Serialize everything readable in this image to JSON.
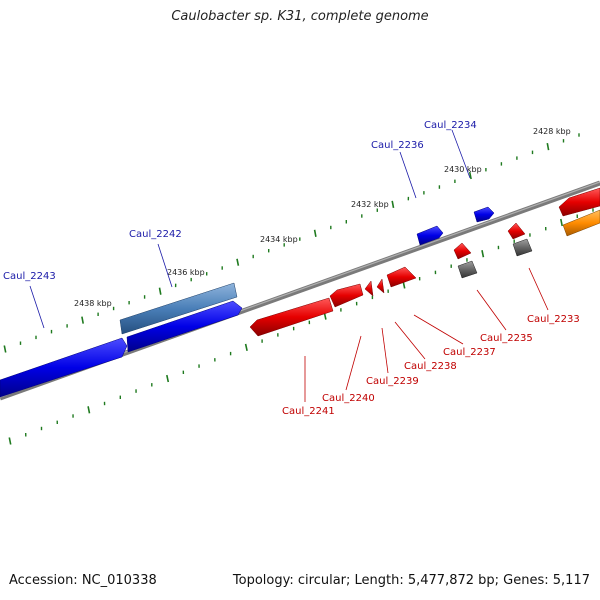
{
  "title": "Caulobacter sp. K31, complete genome",
  "footer": {
    "accession": "Accession: NC_010338",
    "stats": "Topology: circular; Length: 5,477,872 bp; Genes: 5,117"
  },
  "scale_labels": [
    "2438 kbp",
    "2436 kbp",
    "2434 kbp",
    "2432 kbp",
    "2430 kbp",
    "2428 kbp"
  ],
  "genes_forward": [
    "Caul_2243",
    "Caul_2242",
    "Caul_2236",
    "Caul_2234"
  ],
  "genes_reverse": [
    "Caul_2241",
    "Caul_2240",
    "Caul_2239",
    "Caul_2238",
    "Caul_2237",
    "Caul_2235",
    "Caul_2233"
  ],
  "colors": {
    "forward": "#0000e6",
    "forward_alt": "#4a7fb8",
    "reverse": "#e60000",
    "pseudo": "#666666",
    "other": "#ff8c00",
    "forward_label": "#1a1aa8",
    "reverse_label": "#c00000",
    "tick": "#1f7a1f",
    "backbone": "#7a7a7a"
  }
}
